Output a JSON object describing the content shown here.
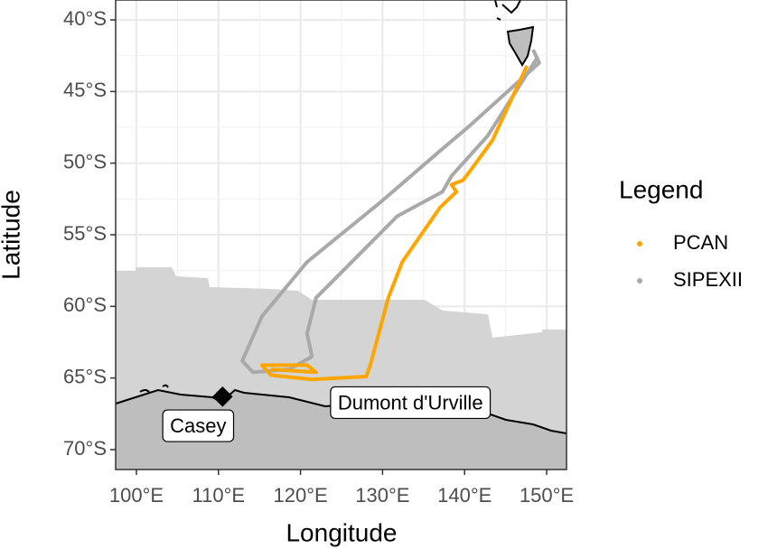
{
  "chart_data": {
    "type": "line",
    "x_label": "Longitude",
    "y_label": "Latitude",
    "xlim": [
      97.47,
      152.42
    ],
    "ylim": [
      -71.39,
      -38.61
    ],
    "xticks": [
      {
        "value": 100,
        "label": "100°E"
      },
      {
        "value": 110,
        "label": "110°E"
      },
      {
        "value": 120,
        "label": "120°E"
      },
      {
        "value": 130,
        "label": "130°E"
      },
      {
        "value": 140,
        "label": "140°E"
      },
      {
        "value": 150,
        "label": "150°E"
      }
    ],
    "yticks": [
      {
        "value": -70,
        "label": "70°S"
      },
      {
        "value": -65,
        "label": "65°S"
      },
      {
        "value": -60,
        "label": "60°S"
      },
      {
        "value": -55,
        "label": "55°S"
      },
      {
        "value": -50,
        "label": "50°S"
      },
      {
        "value": -45,
        "label": "45°S"
      },
      {
        "value": -40,
        "label": "40°S"
      }
    ],
    "grid": true,
    "legend_title": "Legend",
    "legend_position": "right",
    "series": [
      {
        "name": "PCAN",
        "color": "#ffa500",
        "x": [
          147.6,
          143.4,
          140.6,
          139.8,
          138.4,
          139.0,
          137.0,
          132.4,
          130.7,
          128.5,
          128.0,
          121.4,
          116.4,
          115.3,
          120.8,
          121.9,
          116.4
        ],
        "values": [
          -43.2,
          -48.4,
          -50.6,
          -51.2,
          -51.5,
          -52.0,
          -53.1,
          -56.9,
          -59.4,
          -64.1,
          -64.9,
          -65.1,
          -64.8,
          -64.1,
          -64.1,
          -64.6,
          -64.4
        ]
      },
      {
        "name": "SIPEXII",
        "color": "#a9a9a9",
        "x": [
          148.35,
          149.1,
          140.6,
          137.3,
          129.6,
          120.8,
          115.3,
          112.9,
          114.2,
          118.6,
          121.4,
          120.8,
          121.9,
          125.2,
          131.8,
          137.3,
          138.4,
          142.8,
          148.9
        ],
        "values": [
          -42.08,
          -43.0,
          -47.4,
          -49.0,
          -52.8,
          -56.9,
          -60.7,
          -63.8,
          -64.6,
          -64.4,
          -63.5,
          -61.9,
          -59.4,
          -57.5,
          -53.7,
          -52.0,
          -50.9,
          -48.1,
          -42.6
        ]
      }
    ],
    "stations": [
      {
        "name": "Casey",
        "lon": 110.5,
        "lat": -66.3
      },
      {
        "name": "Dumont d'Urville",
        "lon": 140.0,
        "lat": -66.7
      }
    ]
  }
}
